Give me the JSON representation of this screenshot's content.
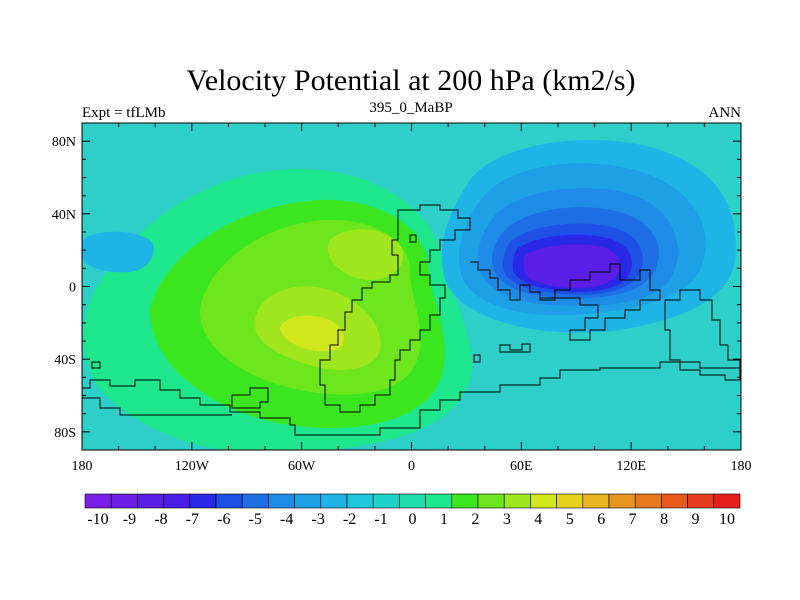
{
  "chart_data": {
    "type": "contour-map",
    "title": "Velocity Potential at 200 hPa (km2/s)",
    "left_label": "Expt = tfLMb",
    "center_label": "395_0_MaBP",
    "right_label": "ANN",
    "xlim": [
      -180,
      180
    ],
    "ylim": [
      -90,
      90
    ],
    "x_ticks": [
      -180,
      -120,
      -60,
      0,
      60,
      120,
      180
    ],
    "x_tick_labels": [
      "180",
      "120W",
      "60W",
      "0",
      "60E",
      "120E",
      "180"
    ],
    "y_ticks": [
      80,
      40,
      0,
      -40,
      -80
    ],
    "y_tick_labels": [
      "80N",
      "40N",
      "0",
      "40S",
      "80S"
    ],
    "colorbar": {
      "levels": [
        -10,
        -9,
        -8,
        -7,
        -6,
        -5,
        -4,
        -3,
        -2,
        -1,
        0,
        1,
        2,
        3,
        4,
        5,
        6,
        7,
        8,
        9,
        10
      ],
      "labels": [
        "-10",
        "-9",
        "-8",
        "-7",
        "-6",
        "-5",
        "-4",
        "-3",
        "-2",
        "-1",
        "0",
        "1",
        "2",
        "3",
        "4",
        "5",
        "6",
        "7",
        "8",
        "9",
        "10"
      ],
      "colors": [
        "#7a1ee6",
        "#6a1ee6",
        "#5a1ee6",
        "#4a1ee6",
        "#2828e6",
        "#1e50e6",
        "#1e6ee6",
        "#1e8ce6",
        "#1ea0e6",
        "#1eb4e6",
        "#1ec8dc",
        "#1ed2c8",
        "#1edcaa",
        "#1ee68c",
        "#3ce61e",
        "#6ee61e",
        "#a0e61e",
        "#d2e61e",
        "#e6d21e",
        "#e6b41e",
        "#e6961e",
        "#e6781e",
        "#e65a1e",
        "#e63c1e",
        "#e61e1e"
      ]
    },
    "field_features": [
      {
        "name": "min",
        "lon": 85,
        "lat": 5,
        "value": -10,
        "rx_deg": 50,
        "ry_deg": 28
      },
      {
        "name": "max-south-america",
        "lon": -45,
        "lat": -25,
        "value": 4.5,
        "rx_deg": 95,
        "ry_deg": 50
      },
      {
        "name": "max-africa",
        "lon": -30,
        "lat": 20,
        "value": 4,
        "rx_deg": 55,
        "ry_deg": 35
      }
    ],
    "background_color": "#2ecfc9"
  }
}
